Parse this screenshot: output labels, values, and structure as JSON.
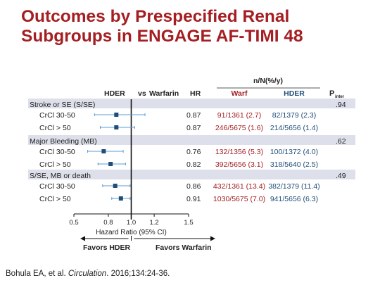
{
  "slide": {
    "title_line1": "Outcomes by Prespecified Renal",
    "title_line2": "Subgroups in ENGAGE AF-TIMI 48",
    "citation_prefix": "Bohula EA, et al. ",
    "citation_journal": "Circulation",
    "citation_suffix": ". 2016;134:24-36."
  },
  "colors": {
    "title": "#a41e22",
    "warf": "#a41e22",
    "hder": "#1f4e79",
    "marker": "#1f4e79",
    "ci_line": "#5b9bd5",
    "band": "#dde0ea",
    "text": "#222222"
  },
  "chart_data": {
    "type": "forest",
    "header": {
      "group_label": "n/N(%/y)",
      "hder_label": "HDER",
      "vs_label": "vs",
      "warfarin_label": "Warfarin",
      "hr_label": "HR",
      "col_warf": "Warf",
      "col_hder": "HDER",
      "p_label": "P",
      "p_sub": "inter"
    },
    "x_axis": {
      "scale": "linear",
      "min": 0.5,
      "max": 1.5,
      "ticks": [
        "0.5",
        "0.8",
        "1.0",
        "1.2",
        "1.5"
      ],
      "tick_values": [
        0.5,
        0.8,
        1.0,
        1.2,
        1.5
      ],
      "label": "Hazard Ratio (95% CI)",
      "reference": 1.0
    },
    "favors_left": "Favors HDER",
    "favors_right": "Favors Warfarin",
    "groups": [
      {
        "label": "Stroke or SE (S/SE)",
        "p_inter": ".94",
        "rows": [
          {
            "label": "CrCl 30-50",
            "hr": 0.87,
            "hr_text": "0.87",
            "ci": [
              0.68,
              1.12
            ],
            "warf": "91/1361 (2.7)",
            "hder": "82/1379 (2.3)"
          },
          {
            "label": "CrCl > 50",
            "hr": 0.87,
            "hr_text": "0.87",
            "ci": [
              0.73,
              1.03
            ],
            "warf": "246/5675 (1.6)",
            "hder": "214/5656 (1.4)"
          }
        ]
      },
      {
        "label": "Major Bleeding (MB)",
        "p_inter": ".62",
        "rows": [
          {
            "label": "CrCl 30-50",
            "hr": 0.76,
            "hr_text": "0.76",
            "ci": [
              0.62,
              0.93
            ],
            "warf": "132/1356 (5.3)",
            "hder": "100/1372 (4.0)"
          },
          {
            "label": "CrCl > 50",
            "hr": 0.82,
            "hr_text": "0.82",
            "ci": [
              0.71,
              0.95
            ],
            "warf": "392/5656 (3.1)",
            "hder": "318/5640 (2.5)"
          }
        ]
      },
      {
        "label": "S/SE, MB or death",
        "p_inter": ".49",
        "rows": [
          {
            "label": "CrCl 30-50",
            "hr": 0.86,
            "hr_text": "0.86",
            "ci": [
              0.75,
              0.99
            ],
            "warf": "432/1361 (13.4)",
            "hder": "382/1379 (11.4)"
          },
          {
            "label": "CrCl > 50",
            "hr": 0.91,
            "hr_text": "0.91",
            "ci": [
              0.83,
              0.99
            ],
            "warf": "1030/5675 (7.0)",
            "hder": "941/5656 (6.3)"
          }
        ]
      }
    ]
  }
}
